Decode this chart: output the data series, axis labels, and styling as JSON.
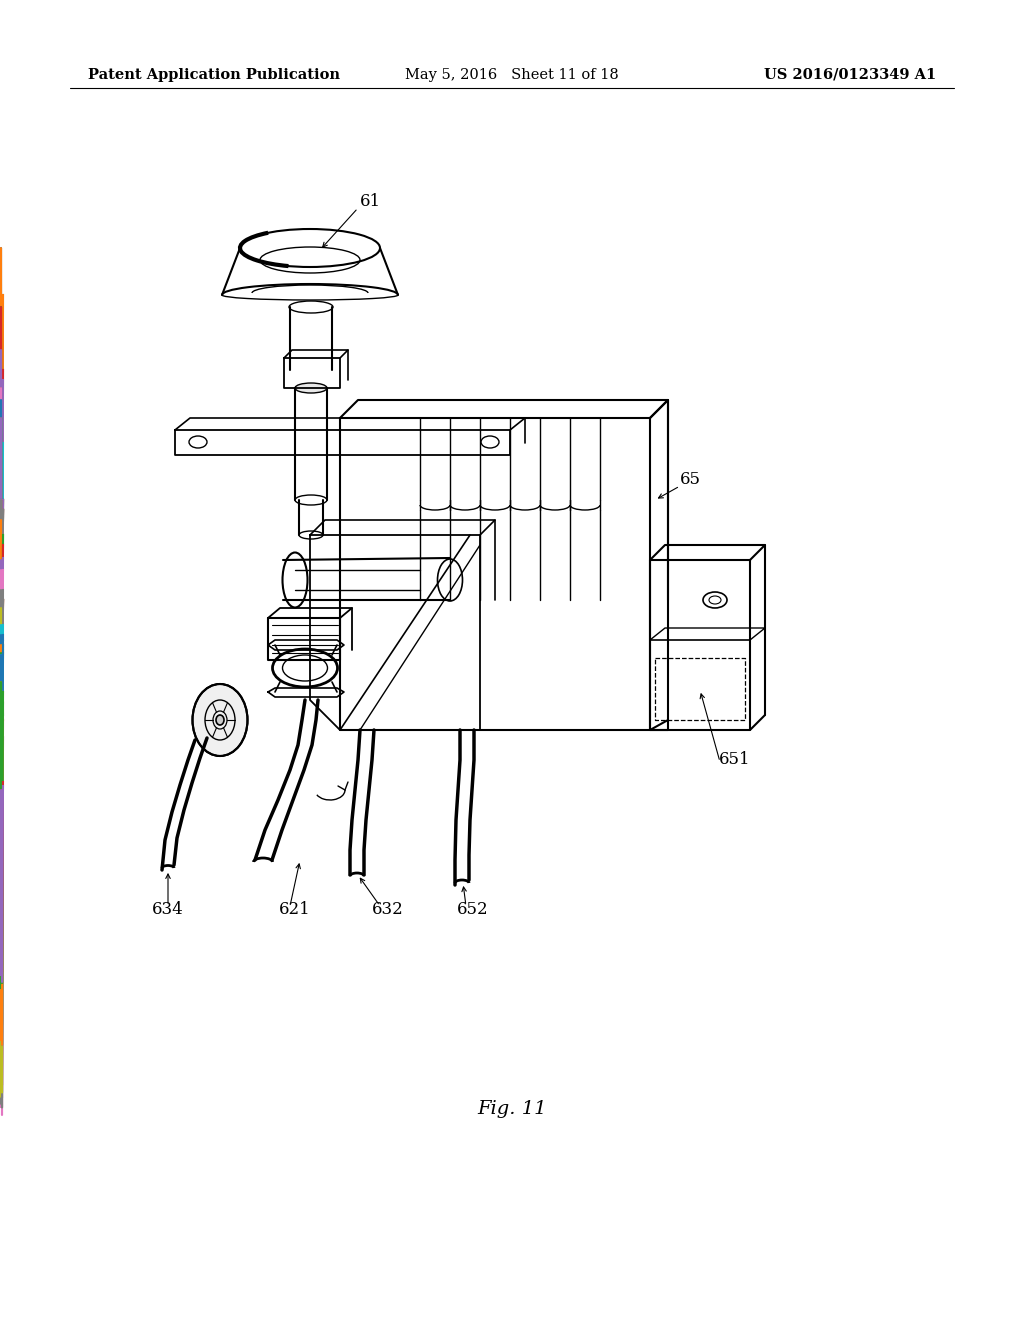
{
  "background_color": "#ffffff",
  "header_left": "Patent Application Publication",
  "header_center": "May 5, 2016   Sheet 11 of 18",
  "header_right": "US 2016/0123349 A1",
  "footer_label": "Fig. 11",
  "lc": "#000000",
  "tc": "#000000",
  "header_fontsize": 10.5,
  "label_fontsize": 12,
  "footer_fontsize": 14,
  "figw": 10.24,
  "figh": 13.2,
  "dpi": 100
}
